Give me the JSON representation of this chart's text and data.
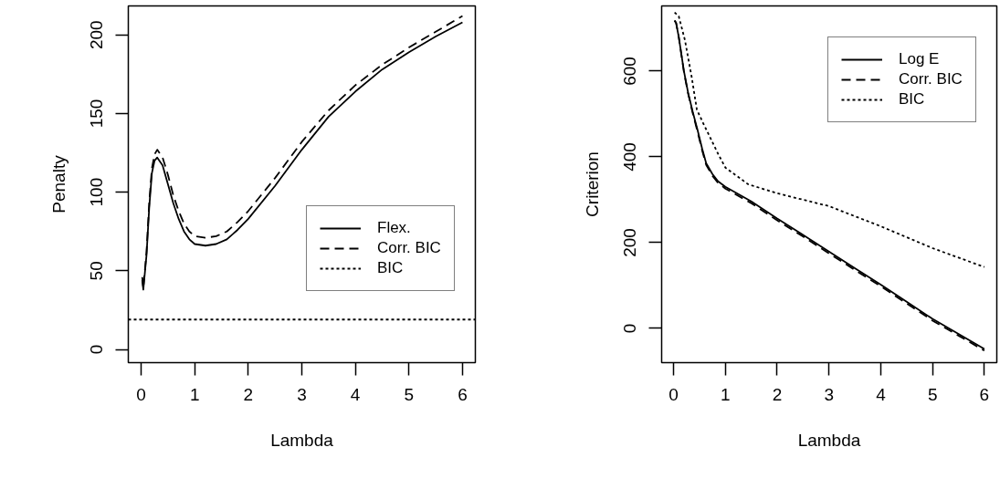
{
  "chart_data": [
    {
      "type": "line",
      "xlabel": "Lambda",
      "ylabel": "Penalty",
      "xlim": [
        -0.24,
        6.24
      ],
      "ylim": [
        -8.4,
        218.4
      ],
      "xticks": [
        0,
        1,
        2,
        3,
        4,
        5,
        6
      ],
      "yticks": [
        0,
        50,
        100,
        150,
        200
      ],
      "grid": false,
      "legend": "right",
      "series": [
        {
          "name": "Flex.",
          "color": "#000000",
          "line_style": "solid",
          "x": [
            0.02,
            0.04,
            0.1,
            0.15,
            0.2,
            0.25,
            0.3,
            0.4,
            0.5,
            0.6,
            0.7,
            0.8,
            0.9,
            1.0,
            1.2,
            1.4,
            1.6,
            1.8,
            2.0,
            2.5,
            3.0,
            3.5,
            4.0,
            4.5,
            5.0,
            5.5,
            6.0
          ],
          "values": [
            44,
            38,
            60,
            90,
            112,
            120,
            122,
            117,
            105,
            93,
            83,
            75,
            70,
            67,
            66,
            67,
            70,
            76,
            83,
            104,
            127,
            148,
            164,
            178,
            189,
            199,
            208
          ]
        },
        {
          "name": "Corr. BIC",
          "color": "#000000",
          "line_style": "dashed",
          "x": [
            0.02,
            0.04,
            0.1,
            0.15,
            0.2,
            0.25,
            0.3,
            0.4,
            0.5,
            0.6,
            0.7,
            0.8,
            0.9,
            1.0,
            1.2,
            1.4,
            1.6,
            1.8,
            2.0,
            2.5,
            3.0,
            3.5,
            4.0,
            4.5,
            5.0,
            5.5,
            6.0
          ],
          "values": [
            46,
            39,
            62,
            93,
            115,
            124,
            127,
            122,
            111,
            98,
            88,
            80,
            75,
            72,
            71,
            72,
            75,
            81,
            88,
            109,
            132,
            152,
            168,
            181,
            192,
            202,
            212
          ]
        },
        {
          "name": "BIC",
          "color": "#000000",
          "line_style": "dotted",
          "x": [
            -0.24,
            6.24
          ],
          "values": [
            19,
            19
          ]
        }
      ]
    },
    {
      "type": "line",
      "xlabel": "Lambda",
      "ylabel": "Criterion",
      "xlim": [
        -0.23,
        6.24
      ],
      "ylim": [
        -80,
        752
      ],
      "xticks": [
        0,
        1,
        2,
        3,
        4,
        5,
        6
      ],
      "yticks": [
        0,
        200,
        400,
        600
      ],
      "grid": false,
      "legend": "top right",
      "series": [
        {
          "name": "Log E",
          "color": "#000000",
          "line_style": "solid",
          "x": [
            0.02,
            0.05,
            0.1,
            0.2,
            0.28,
            0.37,
            0.46,
            0.55,
            0.63,
            0.75,
            0.86,
            1.0,
            1.5,
            2.0,
            2.5,
            3.0,
            3.5,
            4.0,
            4.5,
            5.0,
            5.5,
            6.0
          ],
          "values": [
            718,
            712,
            680,
            600,
            550,
            505,
            464,
            420,
            385,
            360,
            343,
            330,
            296,
            256,
            218,
            179,
            140,
            102,
            62,
            22,
            -13,
            -48
          ]
        },
        {
          "name": "Corr. BIC",
          "color": "#000000",
          "line_style": "dashed",
          "x": [
            0.02,
            0.05,
            0.1,
            0.2,
            0.28,
            0.37,
            0.46,
            0.55,
            0.63,
            0.75,
            0.86,
            1.0,
            1.5,
            2.0,
            2.5,
            3.0,
            3.5,
            4.0,
            4.5,
            5.0,
            5.5,
            6.0
          ],
          "values": [
            718,
            712,
            680,
            598,
            548,
            502,
            460,
            416,
            381,
            356,
            339,
            326,
            292,
            252,
            214,
            175,
            136,
            98,
            58,
            18,
            -17,
            -52
          ]
        },
        {
          "name": "BIC",
          "color": "#000000",
          "line_style": "dotted",
          "x": [
            0.02,
            0.1,
            0.22,
            0.35,
            0.45,
            0.57,
            0.86,
            1.0,
            1.44,
            2.0,
            3.0,
            4.0,
            5.0,
            6.0
          ],
          "values": [
            737,
            728,
            672,
            586,
            510,
            479,
            407,
            375,
            336,
            315,
            285,
            238,
            187,
            143
          ]
        }
      ]
    }
  ]
}
